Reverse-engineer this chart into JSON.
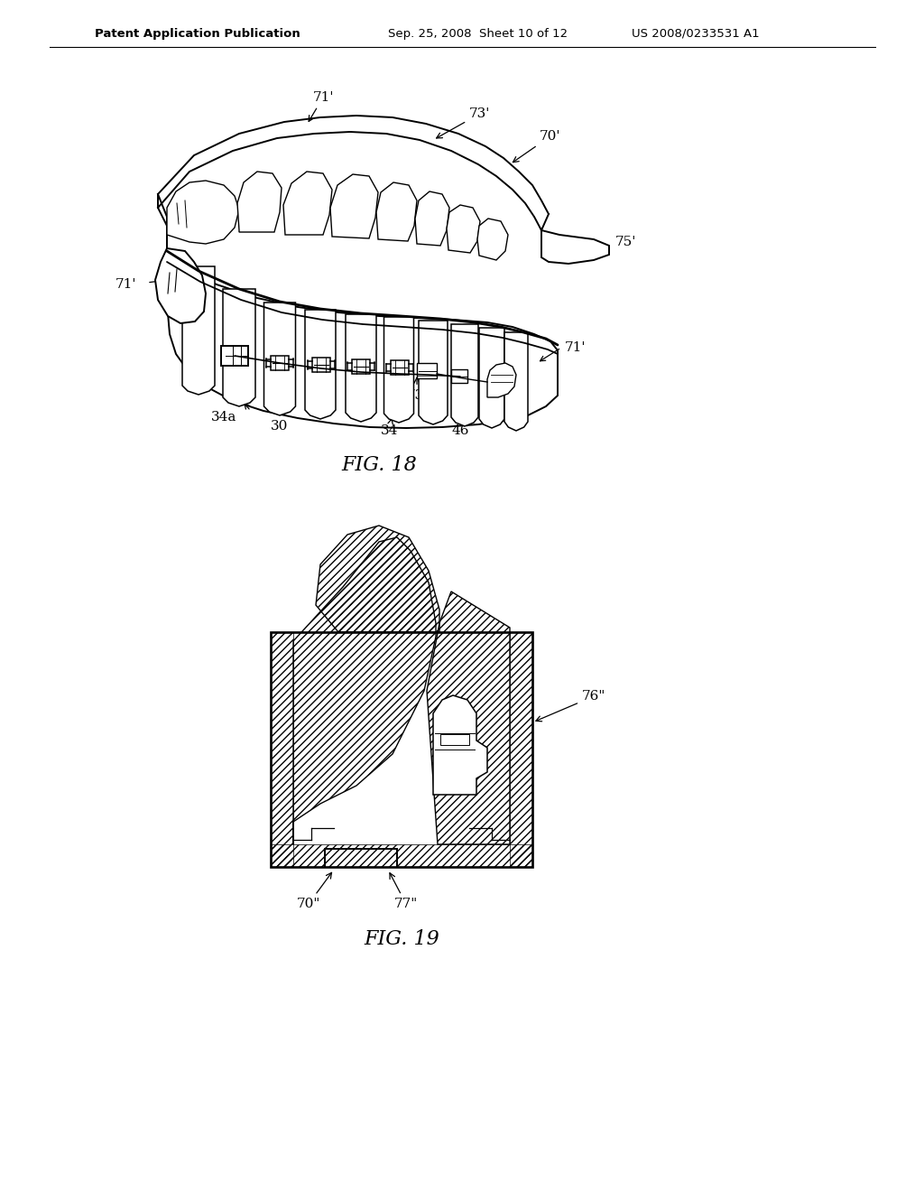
{
  "background_color": "#ffffff",
  "header_left": "Patent Application Publication",
  "header_mid": "Sep. 25, 2008  Sheet 10 of 12",
  "header_right": "US 2008/0233531 A1",
  "fig18_label": "FIG. 18",
  "fig19_label": "FIG. 19",
  "line_color": "#000000",
  "text_color": "#000000"
}
